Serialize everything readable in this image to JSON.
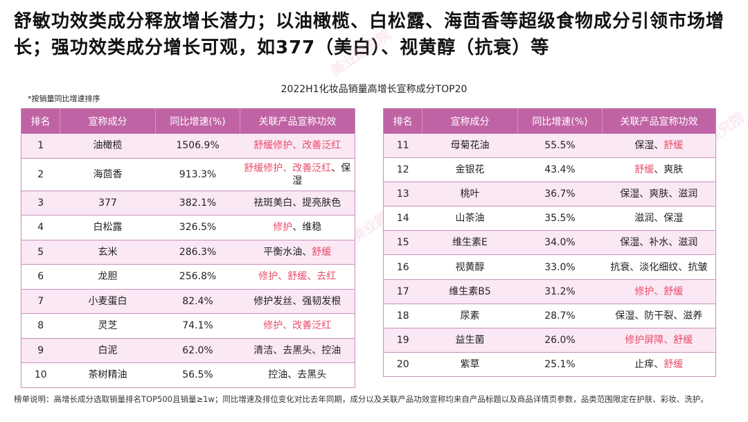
{
  "headline": "舒敏功效类成分释放增长潜力；以油橄榄、白松露、海茴香等超级食物成分引领市场增长；强功效类成分增长可观，如377（美白）、视黄醇（抗衰）等",
  "subtitle": "2022H1化妆品销量高增长宣称成分TOP20",
  "note": "*按销量同比增速排序",
  "columns": [
    "排名",
    "宣称成分",
    "同比增速(%)",
    "关联产品宣称功效"
  ],
  "left_rows": [
    {
      "rank": "1",
      "ingredient": "油橄榄",
      "growth": "1506.9%",
      "effects": [
        {
          "t": "舒缓修护、改善泛红",
          "red": true
        }
      ]
    },
    {
      "rank": "2",
      "ingredient": "海茴香",
      "growth": "913.3%",
      "effects": [
        {
          "t": "舒缓修护、改善泛红",
          "red": true
        },
        {
          "t": "、保湿",
          "red": false
        }
      ]
    },
    {
      "rank": "3",
      "ingredient": "377",
      "growth": "382.1%",
      "effects": [
        {
          "t": "祛斑美白、提亮肤色",
          "red": false
        }
      ]
    },
    {
      "rank": "4",
      "ingredient": "白松露",
      "growth": "326.5%",
      "effects": [
        {
          "t": "修护",
          "red": true
        },
        {
          "t": "、维稳",
          "red": false
        }
      ]
    },
    {
      "rank": "5",
      "ingredient": "玄米",
      "growth": "286.3%",
      "effects": [
        {
          "t": "平衡水油、",
          "red": false
        },
        {
          "t": "舒缓",
          "red": true
        }
      ]
    },
    {
      "rank": "6",
      "ingredient": "龙胆",
      "growth": "256.8%",
      "effects": [
        {
          "t": "修护、舒缓、去红",
          "red": true
        }
      ]
    },
    {
      "rank": "7",
      "ingredient": "小麦蛋白",
      "growth": "82.4%",
      "effects": [
        {
          "t": "修护发丝、强韧发根",
          "red": false
        }
      ]
    },
    {
      "rank": "8",
      "ingredient": "灵芝",
      "growth": "74.1%",
      "effects": [
        {
          "t": "修护、改善泛红",
          "red": true
        }
      ]
    },
    {
      "rank": "9",
      "ingredient": "白泥",
      "growth": "62.0%",
      "effects": [
        {
          "t": "清洁、去黑头、控油",
          "red": false
        }
      ]
    },
    {
      "rank": "10",
      "ingredient": "茶树精油",
      "growth": "56.5%",
      "effects": [
        {
          "t": "控油、去黑头",
          "red": false
        }
      ]
    }
  ],
  "right_rows": [
    {
      "rank": "11",
      "ingredient": "母菊花油",
      "growth": "55.5%",
      "effects": [
        {
          "t": "保湿、",
          "red": false
        },
        {
          "t": "舒缓",
          "red": true
        }
      ]
    },
    {
      "rank": "12",
      "ingredient": "金银花",
      "growth": "43.4%",
      "effects": [
        {
          "t": "舒缓",
          "red": true
        },
        {
          "t": "、爽肤",
          "red": false
        }
      ]
    },
    {
      "rank": "13",
      "ingredient": "桃叶",
      "growth": "36.7%",
      "effects": [
        {
          "t": "保湿、爽肤、滋润",
          "red": false
        }
      ]
    },
    {
      "rank": "14",
      "ingredient": "山茶油",
      "growth": "35.5%",
      "effects": [
        {
          "t": "滋润、保湿",
          "red": false
        }
      ]
    },
    {
      "rank": "15",
      "ingredient": "维生素E",
      "growth": "34.0%",
      "effects": [
        {
          "t": "保湿、补水、滋润",
          "red": false
        }
      ]
    },
    {
      "rank": "16",
      "ingredient": "视黄醇",
      "growth": "33.0%",
      "effects": [
        {
          "t": "抗衰、淡化细纹、抗皱",
          "red": false
        }
      ]
    },
    {
      "rank": "17",
      "ingredient": "维生素B5",
      "growth": "31.2%",
      "effects": [
        {
          "t": "修护、舒缓",
          "red": true
        }
      ]
    },
    {
      "rank": "18",
      "ingredient": "尿素",
      "growth": "28.7%",
      "effects": [
        {
          "t": "保湿、防干裂、滋养",
          "red": false
        }
      ]
    },
    {
      "rank": "19",
      "ingredient": "益生菌",
      "growth": "26.0%",
      "effects": [
        {
          "t": "修护屏障、舒缓",
          "red": true
        }
      ]
    },
    {
      "rank": "20",
      "ingredient": "紫草",
      "growth": "25.1%",
      "effects": [
        {
          "t": "止痒、",
          "red": false
        },
        {
          "t": "舒缓",
          "red": true
        }
      ]
    }
  ],
  "footer": "榜单说明：高增长成分选取销量排名TOP500且销量≥1w；同比增速及排位变化对比去年同期，成分以及关联产品功效宣称均来自产品标题以及商品详情页参数，品类范围限定在护肤、彩妆、洗护。",
  "watermark": "美业颜究院",
  "colors": {
    "header": "#c063a5",
    "stripe": "#fae8f4",
    "highlight": "#e84d6a"
  }
}
